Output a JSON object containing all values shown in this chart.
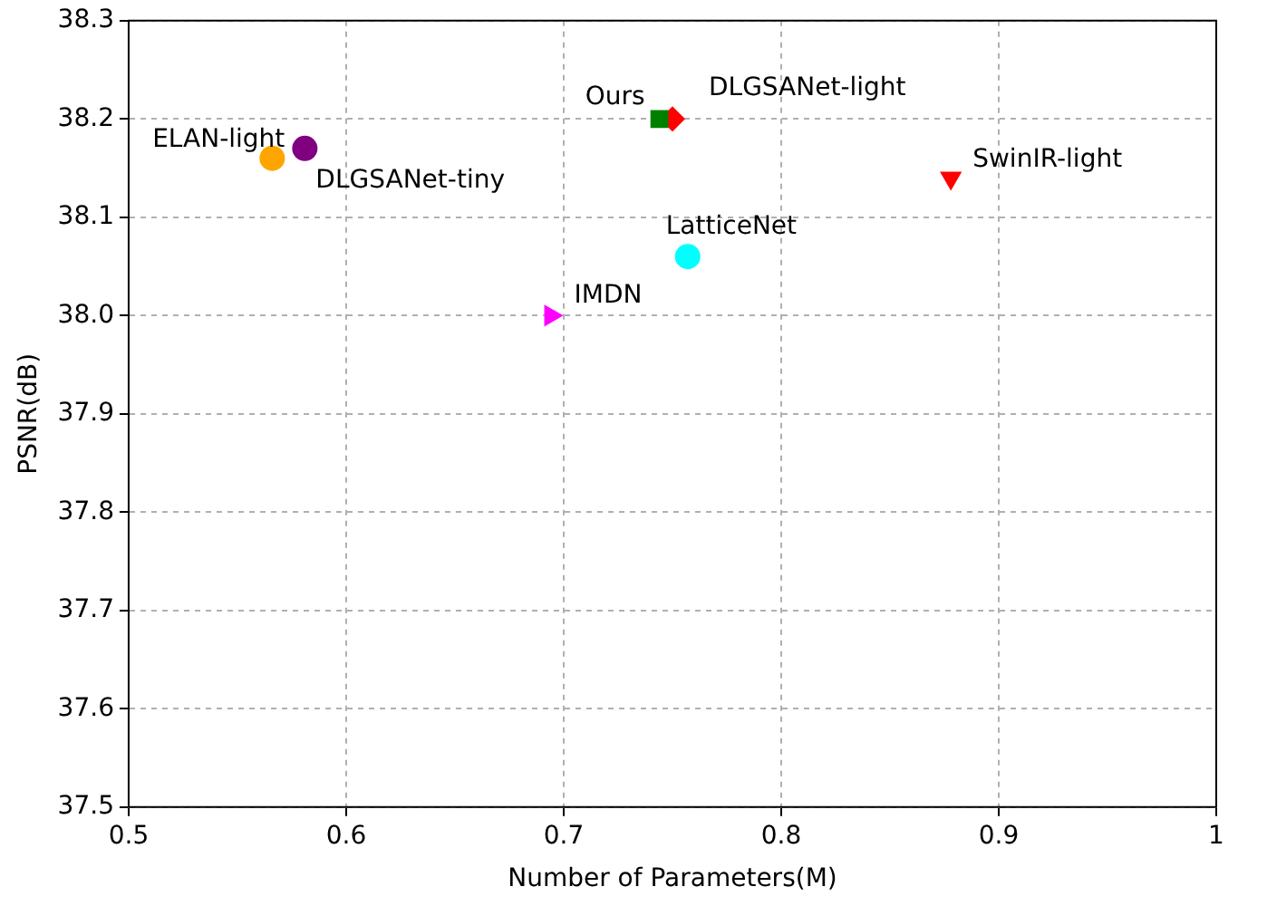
{
  "chart_data": {
    "type": "scatter",
    "xlabel": "Number of Parameters(M)",
    "ylabel": "PSNR(dB)",
    "xlim": [
      0.5,
      1
    ],
    "xticks": [
      0.5,
      0.6,
      0.7,
      0.8,
      0.9,
      1
    ],
    "ylim": [
      37.5,
      38.3
    ],
    "yticks": [
      37.5,
      37.6,
      37.7,
      37.8,
      37.9,
      {
        "value": 38,
        "label": "38.0"
      },
      38.1,
      38.2,
      38.3
    ],
    "grid": true,
    "legend": false,
    "series": [
      {
        "name": "ELAN-light",
        "color": "#ffa500",
        "marker": "circle",
        "x": [
          0.566
        ],
        "values": [
          38.16
        ]
      },
      {
        "name": "DLGSANet-tiny",
        "color": "#800080",
        "marker": "circle",
        "x": [
          0.581
        ],
        "values": [
          38.17
        ]
      },
      {
        "name": "Ours",
        "color": "#008000",
        "marker": "square",
        "x": [
          0.744
        ],
        "values": [
          38.2
        ]
      },
      {
        "name": "DLGSANet-light",
        "color": "#ff0000",
        "marker": "diamond",
        "x": [
          0.75
        ],
        "values": [
          38.2
        ]
      },
      {
        "name": "SwinIR-light",
        "color": "#ff0000",
        "marker": "triangle-down",
        "x": [
          0.878
        ],
        "values": [
          38.14
        ]
      },
      {
        "name": "LatticeNet",
        "color": "#00ffff",
        "marker": "circle",
        "x": [
          0.757
        ],
        "values": [
          38.06
        ]
      },
      {
        "name": "IMDN",
        "color": "#ff00ff",
        "marker": "triangle-right",
        "x": [
          0.694
        ],
        "values": [
          38.0
        ]
      }
    ]
  }
}
